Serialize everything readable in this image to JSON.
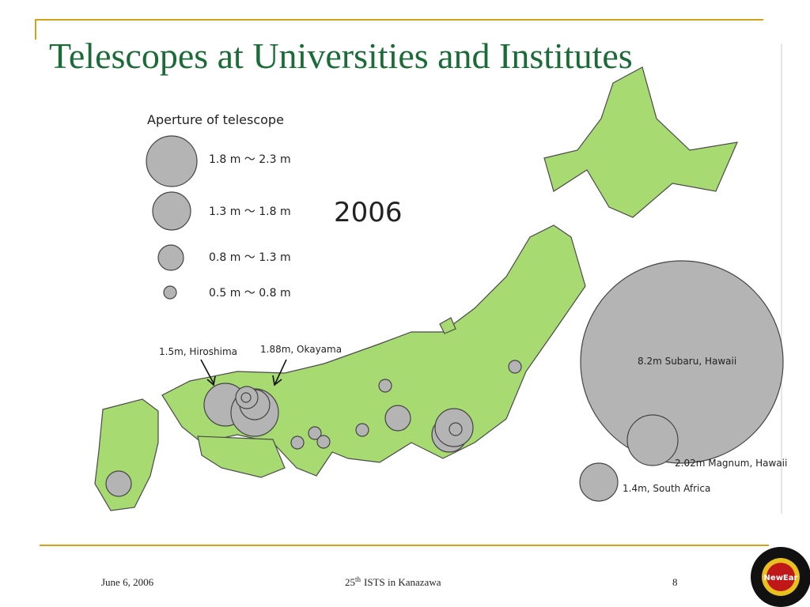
{
  "header": {
    "title": "Telescopes at Universities and Institutes"
  },
  "legend": {
    "title": "Aperture of telescope",
    "items": [
      "1.8 m ～ 2.3 m",
      "1.3 m ～ 1.8 m",
      "0.8 m ～ 1.3 m",
      "0.5 m ～ 0.8 m"
    ]
  },
  "year": "2006",
  "labels": {
    "hiroshima": "1.5m, Hiroshima",
    "okayama": "1.88m, Okayama",
    "subaru": "8.2m Subaru, Hawaii",
    "magnum": "2.02m Magnum, Hawaii",
    "south_africa": "1.4m, South Africa"
  },
  "footer": {
    "date": "June 6, 2006",
    "event_number": "25",
    "event_suffix": "th",
    "event_name": "ISTS in Kanazawa",
    "page": "8"
  },
  "logo": {
    "text": "NewEar"
  }
}
